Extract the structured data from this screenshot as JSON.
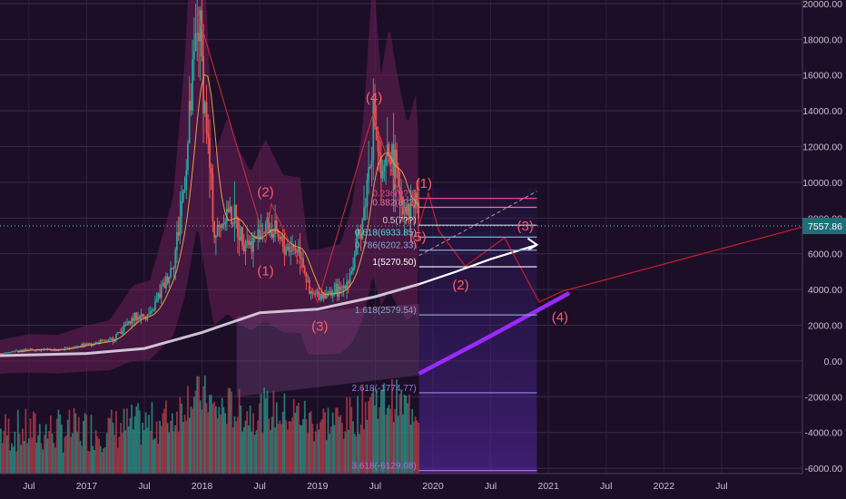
{
  "chart_data": {
    "type": "candlestick",
    "title": "",
    "price_axis": {
      "ticks": [
        20000,
        18000,
        16000,
        14000,
        12000,
        10000,
        8000,
        6000,
        4000,
        2000,
        0,
        -2000,
        -4000,
        -6000
      ],
      "tick_labels": [
        "20000.00",
        "18000.00",
        "16000.00",
        "14000.00",
        "12000.00",
        "10000.00",
        "8000.00",
        "6000.00",
        "4000.00",
        "2000.00",
        "0.00",
        "-2000.00",
        "-4000.00",
        "-6000.00"
      ],
      "ylim": [
        -6300,
        20200
      ],
      "current_price": 7557.86,
      "current_price_label": "7557.86"
    },
    "time_axis": {
      "xlim": [
        2016.25,
        2023.2
      ],
      "ticks": [
        {
          "t": 2016.5,
          "label": "Jul"
        },
        {
          "t": 2017.0,
          "label": "2017"
        },
        {
          "t": 2017.5,
          "label": "Jul"
        },
        {
          "t": 2018.0,
          "label": "2018"
        },
        {
          "t": 2018.5,
          "label": "Jul"
        },
        {
          "t": 2019.0,
          "label": "2019"
        },
        {
          "t": 2019.5,
          "label": "Jul"
        },
        {
          "t": 2020.0,
          "label": "2020"
        },
        {
          "t": 2020.5,
          "label": "Jul"
        },
        {
          "t": 2021.0,
          "label": "2021"
        },
        {
          "t": 2021.5,
          "label": "Jul"
        },
        {
          "t": 2022.0,
          "label": "2022"
        },
        {
          "t": 2022.5,
          "label": "Jul"
        }
      ]
    },
    "price_path": [
      [
        2016.25,
        430
      ],
      [
        2016.5,
        650
      ],
      [
        2016.75,
        620
      ],
      [
        2017.0,
        960
      ],
      [
        2017.2,
        1150
      ],
      [
        2017.4,
        2400
      ],
      [
        2017.55,
        2600
      ],
      [
        2017.75,
        5600
      ],
      [
        2017.85,
        10500
      ],
      [
        2017.96,
        19500
      ],
      [
        2018.05,
        11500
      ],
      [
        2018.1,
        7000
      ],
      [
        2018.22,
        8500
      ],
      [
        2018.3,
        7500
      ],
      [
        2018.42,
        6500
      ],
      [
        2018.55,
        7700
      ],
      [
        2018.7,
        6400
      ],
      [
        2018.85,
        6300
      ],
      [
        2018.92,
        3700
      ],
      [
        2019.0,
        3700
      ],
      [
        2019.2,
        3900
      ],
      [
        2019.3,
        5300
      ],
      [
        2019.4,
        8500
      ],
      [
        2019.48,
        13800
      ],
      [
        2019.55,
        10000
      ],
      [
        2019.62,
        11800
      ],
      [
        2019.7,
        9800
      ],
      [
        2019.78,
        8200
      ],
      [
        2019.85,
        9300
      ],
      [
        2019.88,
        7557.86
      ]
    ],
    "wave_labels": [
      {
        "label": "(1)",
        "t": 2018.55,
        "p": 4800
      },
      {
        "label": "(2)",
        "t": 2018.55,
        "p": 9200
      },
      {
        "label": "(3)",
        "t": 2019.02,
        "p": 1700
      },
      {
        "label": "(4)",
        "t": 2019.49,
        "p": 14500
      },
      {
        "label": "(5)",
        "t": 2019.87,
        "p": 6700
      },
      {
        "label": "(1)",
        "t": 2019.92,
        "p": 9700
      },
      {
        "label": "(2)",
        "t": 2020.24,
        "p": 4000
      },
      {
        "label": "(3)",
        "t": 2020.8,
        "p": 7300
      },
      {
        "label": "(4)",
        "t": 2021.1,
        "p": 2200
      }
    ],
    "fib_levels": [
      {
        "ratio": "0.236",
        "label": "0.236(9??)",
        "price": 9100,
        "color": "#e04d8c"
      },
      {
        "ratio": "0.382",
        "label": "0.382(8??)",
        "price": 8600,
        "color": "#e07aa5"
      },
      {
        "ratio": "0.5",
        "label": "0.5(7??)",
        "price": 7600,
        "color": "#d0d0e0"
      },
      {
        "ratio": "0.618",
        "label": "0.618(6933.85)",
        "price": 6933.85,
        "color": "#5bd7e5"
      },
      {
        "ratio": "0.786",
        "label": "0.786(6202.33)",
        "price": 6202.33,
        "color": "#7fa9d9"
      },
      {
        "ratio": "1",
        "label": "1(5270.50)",
        "price": 5270.5,
        "color": "#ffffff"
      },
      {
        "ratio": "1.618",
        "label": "1.618(2579.54)",
        "price": 2579.54,
        "color": "#8aa0c0"
      },
      {
        "ratio": "2.618",
        "label": "2.618(-1774.77)",
        "price": -1774.77,
        "color": "#8a7adf"
      },
      {
        "ratio": "3.618",
        "label": "3.618(-6129.08)",
        "price": -6129.08,
        "color": "#b06ad9"
      }
    ],
    "projection_path": [
      [
        2019.88,
        7557.86
      ],
      [
        2019.96,
        9400
      ],
      [
        2020.05,
        7300
      ],
      [
        2020.28,
        5300
      ],
      [
        2020.62,
        6900
      ],
      [
        2020.92,
        3300
      ],
      [
        2021.12,
        3900
      ],
      [
        2023.2,
        7500
      ]
    ],
    "moving_average_200": [
      [
        2016.25,
        300
      ],
      [
        2017.0,
        420
      ],
      [
        2017.5,
        700
      ],
      [
        2018.0,
        1600
      ],
      [
        2018.5,
        2700
      ],
      [
        2019.0,
        2900
      ],
      [
        2019.5,
        3600
      ],
      [
        2019.88,
        4300
      ]
    ],
    "ma_projection": [
      [
        2019.88,
        4300
      ],
      [
        2020.2,
        5000
      ],
      [
        2020.5,
        5700
      ],
      [
        2020.9,
        6500
      ]
    ],
    "purple_projection": [
      [
        2019.88,
        -700
      ],
      [
        2020.5,
        1400
      ],
      [
        2021.18,
        3800
      ]
    ],
    "volume_bars_visible": true,
    "grid": true,
    "legend": "none"
  }
}
